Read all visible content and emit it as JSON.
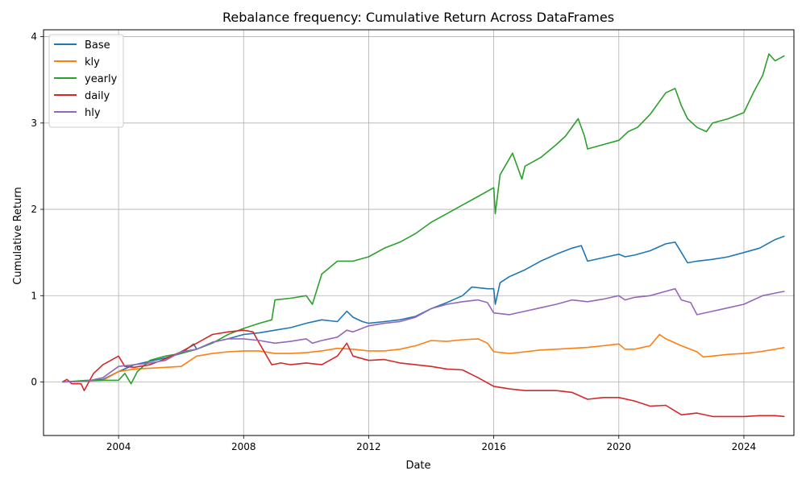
{
  "chart_data": {
    "type": "line",
    "title": "Rebalance frequency: Cumulative Return Across DataFrames",
    "xlabel": "Date",
    "ylabel": "Cumulative Return",
    "xlim": [
      2001.6,
      2025.6
    ],
    "ylim": [
      -0.62,
      4.08
    ],
    "xticks": [
      2004,
      2008,
      2012,
      2016,
      2020,
      2024
    ],
    "xtick_labels": [
      "2004",
      "2008",
      "2012",
      "2016",
      "2020",
      "2024"
    ],
    "yticks": [
      0,
      1,
      2,
      3,
      4
    ],
    "ytick_labels": [
      "0",
      "1",
      "2",
      "3",
      "4"
    ],
    "grid": true,
    "legend_position": "top-left",
    "series": [
      {
        "name": "Base",
        "color": "#1f77b4",
        "x": [
          2002.2,
          2003.0,
          2003.5,
          2004.0,
          2004.5,
          2005.0,
          2005.5,
          2006.0,
          2006.4,
          2006.5,
          2007.0,
          2007.5,
          2008.0,
          2008.5,
          2009.0,
          2009.5,
          2010.0,
          2010.5,
          2011.0,
          2011.3,
          2011.5,
          2011.8,
          2012.0,
          2012.5,
          2013.0,
          2013.5,
          2014.0,
          2014.5,
          2015.0,
          2015.3,
          2015.8,
          2016.0,
          2016.05,
          2016.2,
          2016.5,
          2017.0,
          2017.5,
          2018.0,
          2018.5,
          2018.8,
          2019.0,
          2019.5,
          2020.0,
          2020.2,
          2020.5,
          2021.0,
          2021.5,
          2021.8,
          2022.0,
          2022.2,
          2022.5,
          2023.0,
          2023.5,
          2024.0,
          2024.5,
          2025.0,
          2025.3
        ],
        "y": [
          0.0,
          0.01,
          0.03,
          0.12,
          0.2,
          0.24,
          0.28,
          0.33,
          0.44,
          0.38,
          0.46,
          0.5,
          0.55,
          0.57,
          0.6,
          0.63,
          0.68,
          0.72,
          0.7,
          0.82,
          0.75,
          0.7,
          0.68,
          0.7,
          0.72,
          0.76,
          0.85,
          0.92,
          1.0,
          1.1,
          1.08,
          1.08,
          0.9,
          1.15,
          1.22,
          1.3,
          1.4,
          1.48,
          1.55,
          1.58,
          1.4,
          1.44,
          1.48,
          1.45,
          1.47,
          1.52,
          1.6,
          1.62,
          1.5,
          1.38,
          1.4,
          1.42,
          1.45,
          1.5,
          1.55,
          1.65,
          1.69
        ]
      },
      {
        "name": "kly",
        "color": "#ff7f0e",
        "x": [
          2002.2,
          2003.0,
          2003.5,
          2004.0,
          2004.5,
          2005.0,
          2005.5,
          2006.0,
          2006.5,
          2007.0,
          2007.5,
          2008.0,
          2008.5,
          2009.0,
          2009.5,
          2010.0,
          2010.5,
          2011.0,
          2011.5,
          2012.0,
          2012.5,
          2013.0,
          2013.5,
          2014.0,
          2014.5,
          2015.0,
          2015.5,
          2015.8,
          2016.0,
          2016.5,
          2017.0,
          2017.5,
          2018.0,
          2018.5,
          2019.0,
          2019.5,
          2020.0,
          2020.2,
          2020.5,
          2021.0,
          2021.3,
          2021.5,
          2022.0,
          2022.5,
          2022.7,
          2023.0,
          2023.5,
          2024.0,
          2024.5,
          2025.0,
          2025.3
        ],
        "y": [
          0.0,
          0.01,
          0.02,
          0.12,
          0.15,
          0.16,
          0.17,
          0.18,
          0.3,
          0.33,
          0.35,
          0.36,
          0.36,
          0.33,
          0.33,
          0.34,
          0.36,
          0.39,
          0.38,
          0.36,
          0.36,
          0.38,
          0.42,
          0.48,
          0.47,
          0.49,
          0.5,
          0.45,
          0.35,
          0.33,
          0.35,
          0.37,
          0.38,
          0.39,
          0.4,
          0.42,
          0.44,
          0.38,
          0.38,
          0.42,
          0.55,
          0.5,
          0.42,
          0.35,
          0.29,
          0.3,
          0.32,
          0.33,
          0.35,
          0.38,
          0.4
        ]
      },
      {
        "name": "yearly",
        "color": "#2ca02c",
        "x": [
          2002.2,
          2003.0,
          2003.5,
          2004.0,
          2004.2,
          2004.4,
          2004.6,
          2005.0,
          2005.5,
          2006.0,
          2006.5,
          2007.0,
          2007.5,
          2008.0,
          2008.5,
          2008.9,
          2009.0,
          2009.5,
          2010.0,
          2010.2,
          2010.5,
          2011.0,
          2011.5,
          2012.0,
          2012.5,
          2013.0,
          2013.5,
          2014.0,
          2014.5,
          2015.0,
          2015.5,
          2016.0,
          2016.05,
          2016.2,
          2016.6,
          2016.9,
          2017.0,
          2017.5,
          2018.0,
          2018.3,
          2018.7,
          2018.9,
          2019.0,
          2019.5,
          2020.0,
          2020.3,
          2020.6,
          2021.0,
          2021.5,
          2021.8,
          2022.0,
          2022.2,
          2022.5,
          2022.8,
          2023.0,
          2023.5,
          2024.0,
          2024.3,
          2024.6,
          2024.8,
          2025.0,
          2025.3
        ],
        "y": [
          0.0,
          0.02,
          0.02,
          0.02,
          0.1,
          -0.02,
          0.12,
          0.25,
          0.3,
          0.33,
          0.38,
          0.45,
          0.55,
          0.62,
          0.68,
          0.72,
          0.95,
          0.97,
          1.0,
          0.9,
          1.25,
          1.4,
          1.4,
          1.45,
          1.55,
          1.62,
          1.72,
          1.85,
          1.95,
          2.05,
          2.15,
          2.25,
          1.95,
          2.4,
          2.65,
          2.35,
          2.5,
          2.6,
          2.75,
          2.85,
          3.05,
          2.85,
          2.7,
          2.75,
          2.8,
          2.9,
          2.95,
          3.1,
          3.35,
          3.4,
          3.2,
          3.05,
          2.95,
          2.9,
          3.0,
          3.05,
          3.12,
          3.35,
          3.55,
          3.8,
          3.72,
          3.78
        ]
      },
      {
        "name": "daily",
        "color": "#d62728",
        "x": [
          2002.2,
          2002.35,
          2002.5,
          2002.8,
          2002.9,
          2003.2,
          2003.5,
          2004.0,
          2004.2,
          2004.5,
          2005.0,
          2005.5,
          2006.0,
          2006.5,
          2007.0,
          2007.5,
          2008.0,
          2008.3,
          2008.5,
          2008.9,
          2009.2,
          2009.5,
          2010.0,
          2010.5,
          2011.0,
          2011.3,
          2011.5,
          2012.0,
          2012.5,
          2013.0,
          2013.5,
          2014.0,
          2014.5,
          2015.0,
          2015.5,
          2016.0,
          2016.5,
          2017.0,
          2017.5,
          2018.0,
          2018.5,
          2019.0,
          2019.5,
          2020.0,
          2020.5,
          2021.0,
          2021.5,
          2022.0,
          2022.5,
          2023.0,
          2023.5,
          2024.0,
          2024.5,
          2025.0,
          2025.3
        ],
        "y": [
          0.0,
          0.03,
          -0.02,
          -0.02,
          -0.1,
          0.1,
          0.2,
          0.3,
          0.18,
          0.17,
          0.2,
          0.27,
          0.35,
          0.45,
          0.55,
          0.58,
          0.6,
          0.58,
          0.45,
          0.2,
          0.22,
          0.2,
          0.22,
          0.2,
          0.3,
          0.45,
          0.3,
          0.25,
          0.26,
          0.22,
          0.2,
          0.18,
          0.15,
          0.14,
          0.05,
          -0.05,
          -0.08,
          -0.1,
          -0.1,
          -0.1,
          -0.12,
          -0.2,
          -0.18,
          -0.18,
          -0.22,
          -0.28,
          -0.27,
          -0.38,
          -0.36,
          -0.4,
          -0.4,
          -0.4,
          -0.39,
          -0.39,
          -0.4
        ]
      },
      {
        "name": "hly",
        "color": "#9467bd",
        "x": [
          2002.2,
          2003.0,
          2003.5,
          2004.0,
          2004.5,
          2005.0,
          2005.5,
          2006.0,
          2006.5,
          2007.0,
          2007.5,
          2008.0,
          2008.5,
          2009.0,
          2009.5,
          2010.0,
          2010.2,
          2010.5,
          2011.0,
          2011.3,
          2011.5,
          2012.0,
          2012.5,
          2013.0,
          2013.5,
          2014.0,
          2014.5,
          2015.0,
          2015.5,
          2015.8,
          2016.0,
          2016.5,
          2017.0,
          2017.5,
          2018.0,
          2018.5,
          2019.0,
          2019.5,
          2020.0,
          2020.2,
          2020.5,
          2021.0,
          2021.5,
          2021.8,
          2022.0,
          2022.3,
          2022.5,
          2023.0,
          2023.5,
          2024.0,
          2024.3,
          2024.6,
          2025.0,
          2025.3
        ],
        "y": [
          0.0,
          0.01,
          0.05,
          0.18,
          0.2,
          0.22,
          0.25,
          0.35,
          0.38,
          0.46,
          0.5,
          0.5,
          0.48,
          0.45,
          0.47,
          0.5,
          0.45,
          0.48,
          0.52,
          0.6,
          0.58,
          0.65,
          0.68,
          0.7,
          0.75,
          0.85,
          0.9,
          0.93,
          0.95,
          0.92,
          0.8,
          0.78,
          0.82,
          0.86,
          0.9,
          0.95,
          0.93,
          0.96,
          1.0,
          0.95,
          0.98,
          1.0,
          1.05,
          1.08,
          0.95,
          0.92,
          0.78,
          0.82,
          0.86,
          0.9,
          0.95,
          1.0,
          1.03,
          1.05
        ]
      }
    ]
  }
}
